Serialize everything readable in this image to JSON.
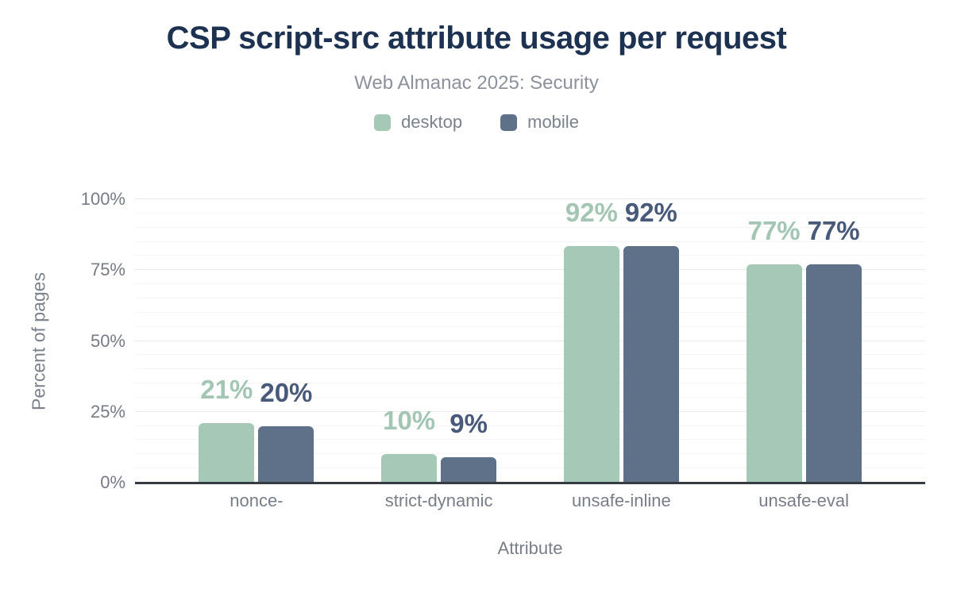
{
  "chart_data": {
    "type": "bar",
    "title": "CSP script-src attribute usage per request",
    "subtitle": "Web Almanac 2025: Security",
    "categories": [
      "nonce-",
      "strict-dynamic",
      "unsafe-inline",
      "unsafe-eval"
    ],
    "series": [
      {
        "name": "desktop",
        "color": "#a6c8b7",
        "label_color": "#a3c6b4",
        "values": [
          21,
          10,
          92,
          77
        ]
      },
      {
        "name": "mobile",
        "color": "#5f7189",
        "label_color": "#48597a",
        "values": [
          20,
          9,
          92,
          77
        ]
      }
    ],
    "xlabel": "Attribute",
    "ylabel": "Percent of pages",
    "ylim": [
      0,
      100
    ],
    "yticks": [
      0,
      25,
      50,
      75,
      100
    ],
    "minor_grid_step": 5,
    "value_suffix": "%",
    "legend_position": "top",
    "grid": true
  },
  "colors": {
    "title": "#1d3150",
    "subtitle": "#8c919b",
    "axis_text": "#787e88",
    "axis_line": "#363a42",
    "grid_major": "#e9eaec",
    "grid_minor": "#f4f4f6",
    "background": "#ffffff"
  }
}
